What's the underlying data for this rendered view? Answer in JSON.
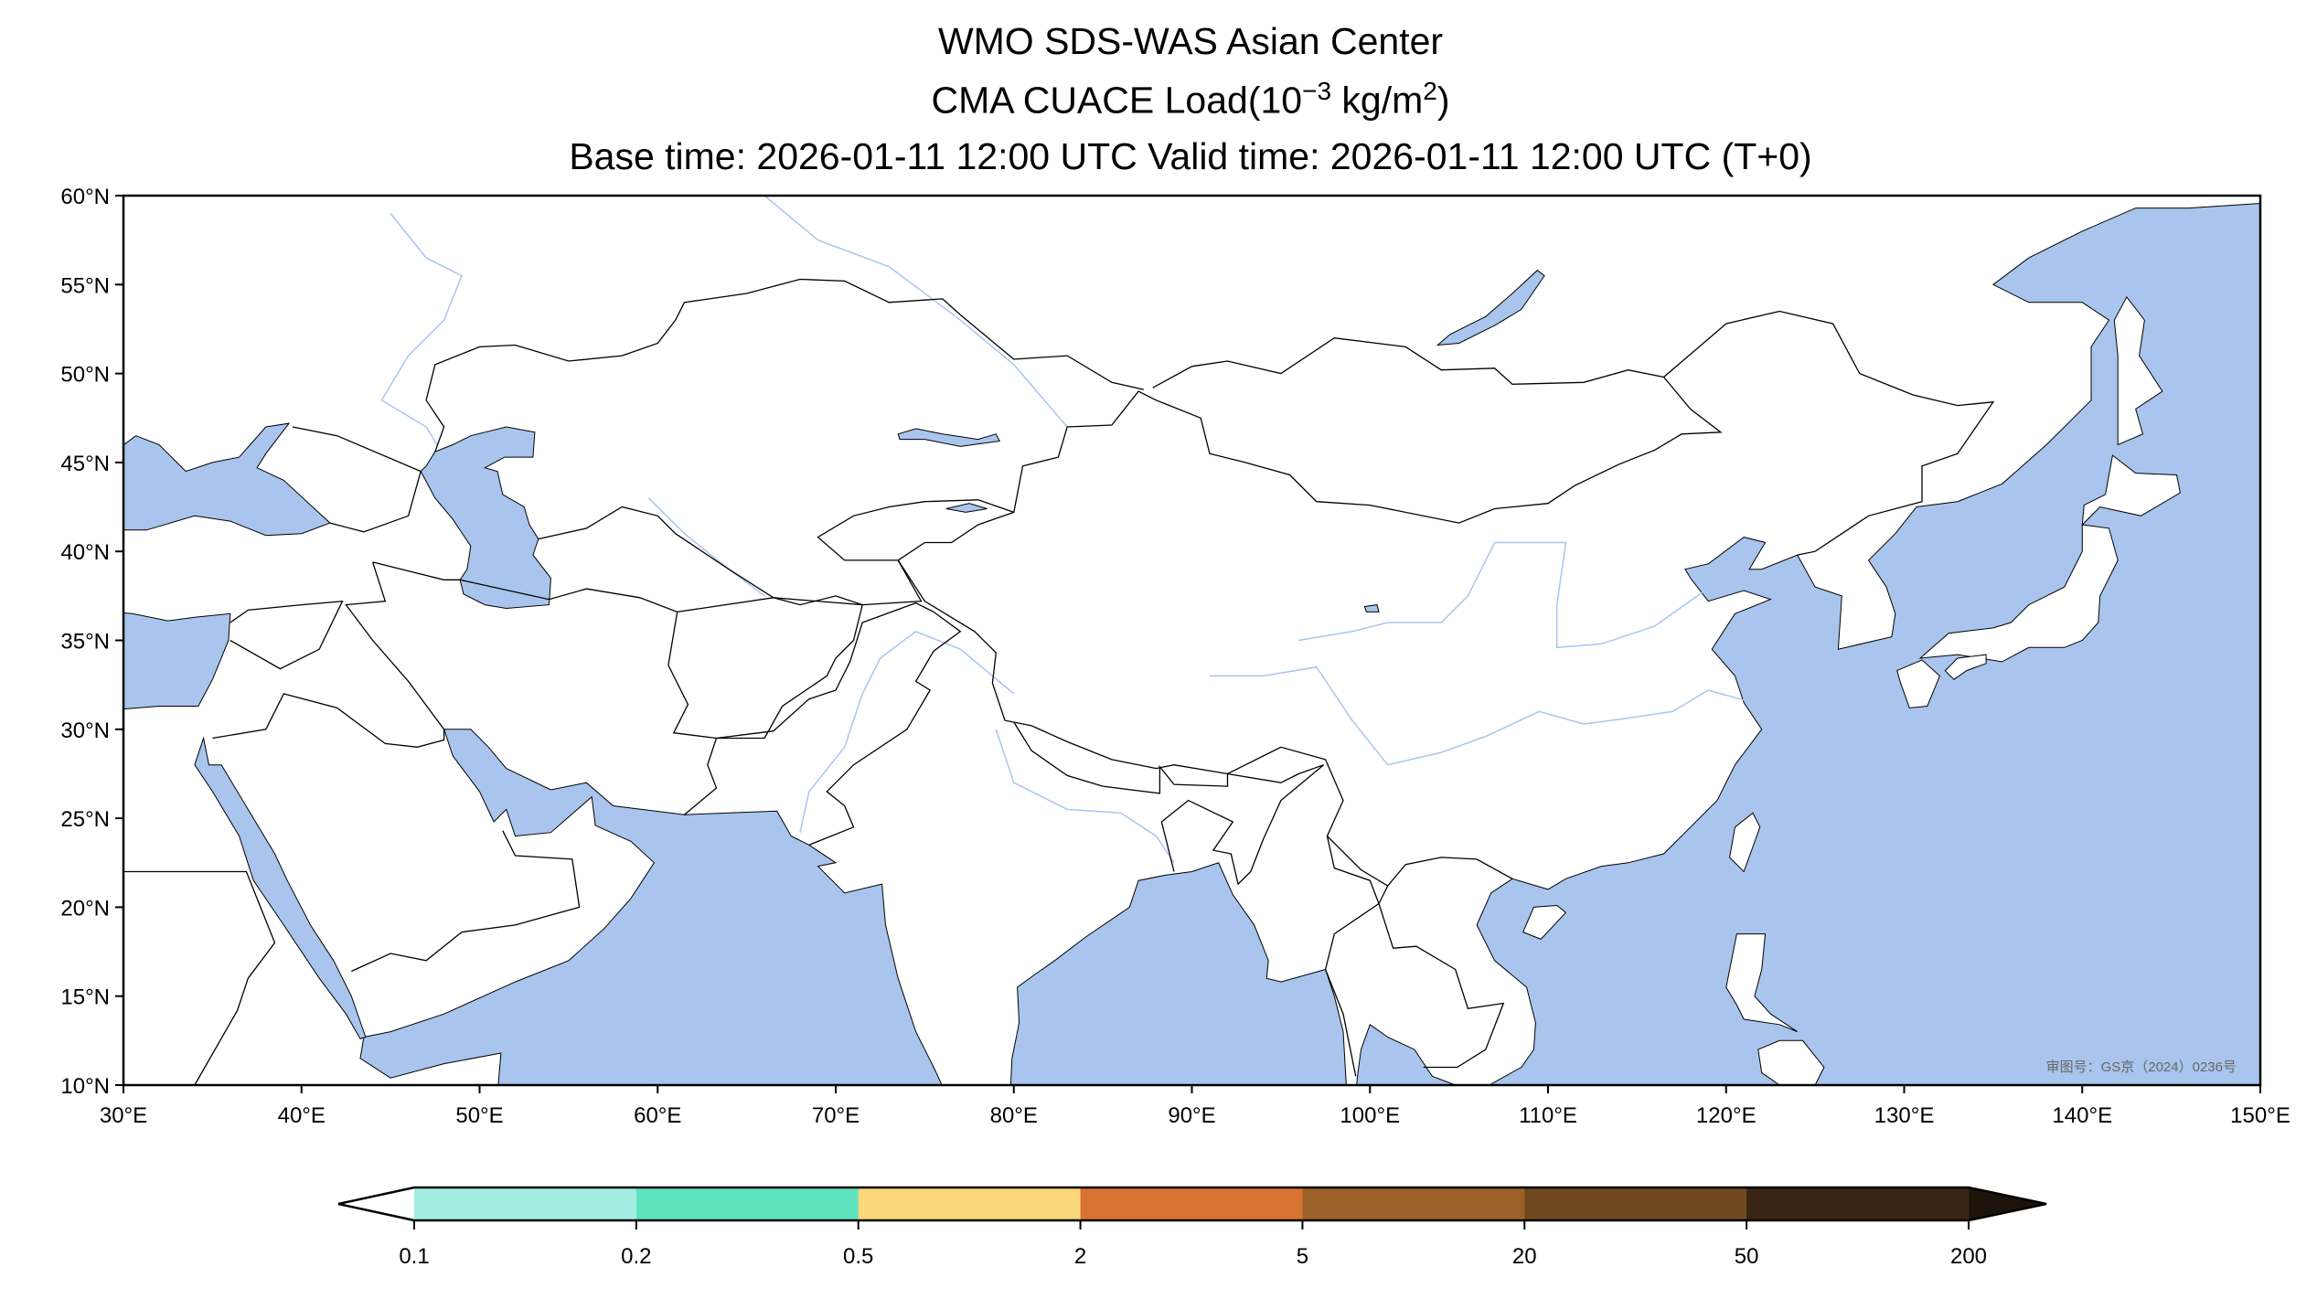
{
  "title": {
    "line1": "WMO SDS-WAS Asian Center",
    "line2_prefix": "CMA CUACE Load(10",
    "line2_exp": "−3",
    "line2_mid": " kg/m",
    "line2_exp2": "2",
    "line2_suffix": ")",
    "line3": "Base time: 2026-01-11 12:00 UTC Valid time: 2026-01-11 12:00 UTC (T+0)"
  },
  "map": {
    "lon_ticks": [
      "30°E",
      "40°E",
      "50°E",
      "60°E",
      "70°E",
      "80°E",
      "90°E",
      "100°E",
      "110°E",
      "120°E",
      "130°E",
      "140°E",
      "150°E"
    ],
    "lat_ticks": [
      "60°N",
      "55°N",
      "50°N",
      "45°N",
      "40°N",
      "35°N",
      "30°N",
      "25°N",
      "20°N",
      "15°N",
      "10°N"
    ],
    "watermark": "审图号：GS京（2024）0236号",
    "ocean_color": "#a9c5ed",
    "land_color": "#ffffff"
  },
  "colorbar": {
    "levels": [
      "0.1",
      "0.2",
      "0.5",
      "2",
      "5",
      "20",
      "50",
      "200"
    ],
    "colors": [
      "#a4ede2",
      "#5fe3be",
      "#fad77a",
      "#d97333",
      "#9c6128",
      "#6f4820",
      "#3a2514"
    ],
    "extend_min_color": "#ffffff",
    "extend_max_color": "#1d130a"
  }
}
